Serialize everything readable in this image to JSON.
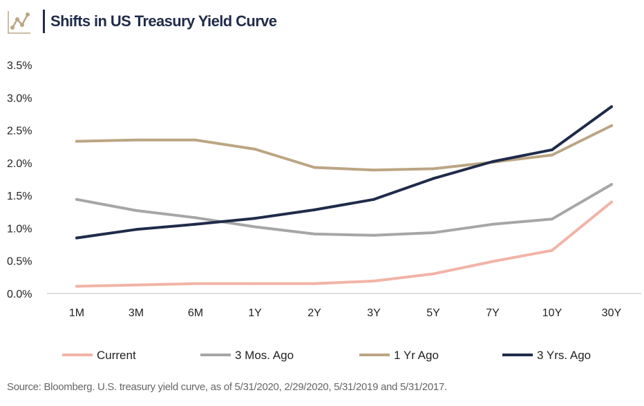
{
  "header": {
    "title": "Shifts in US Treasury Yield Curve",
    "logo_icon": "line-chart-icon"
  },
  "chart_data": {
    "type": "line",
    "x": [
      "1M",
      "3M",
      "6M",
      "1Y",
      "2Y",
      "3Y",
      "5Y",
      "7Y",
      "10Y",
      "30Y"
    ],
    "ylim": [
      0,
      3.5
    ],
    "yticks": [
      "0.0%",
      "0.5%",
      "1.0%",
      "1.5%",
      "2.0%",
      "2.5%",
      "3.0%",
      "3.5%"
    ],
    "grid": false,
    "legend_position": "bottom",
    "series": [
      {
        "name": "Current",
        "color": "#f2b3a6",
        "values": [
          0.11,
          0.13,
          0.15,
          0.15,
          0.15,
          0.19,
          0.3,
          0.49,
          0.66,
          1.4
        ]
      },
      {
        "name": "3 Mos. Ago",
        "color": "#a6a6a6",
        "values": [
          1.44,
          1.27,
          1.16,
          1.02,
          0.91,
          0.89,
          0.93,
          1.06,
          1.14,
          1.67
        ]
      },
      {
        "name": "1 Yr Ago",
        "color": "#bba583",
        "values": [
          2.33,
          2.35,
          2.35,
          2.21,
          1.93,
          1.89,
          1.91,
          2.01,
          2.12,
          2.57
        ]
      },
      {
        "name": "3 Yrs. Ago",
        "color": "#1f2b49",
        "values": [
          0.85,
          0.98,
          1.06,
          1.15,
          1.28,
          1.44,
          1.76,
          2.02,
          2.2,
          2.86
        ]
      }
    ]
  },
  "footer": {
    "source": "Source: Bloomberg. U.S. treasury yield curve, as of 5/31/2020, 2/29/2020, 5/31/2019 and 5/31/2017."
  }
}
